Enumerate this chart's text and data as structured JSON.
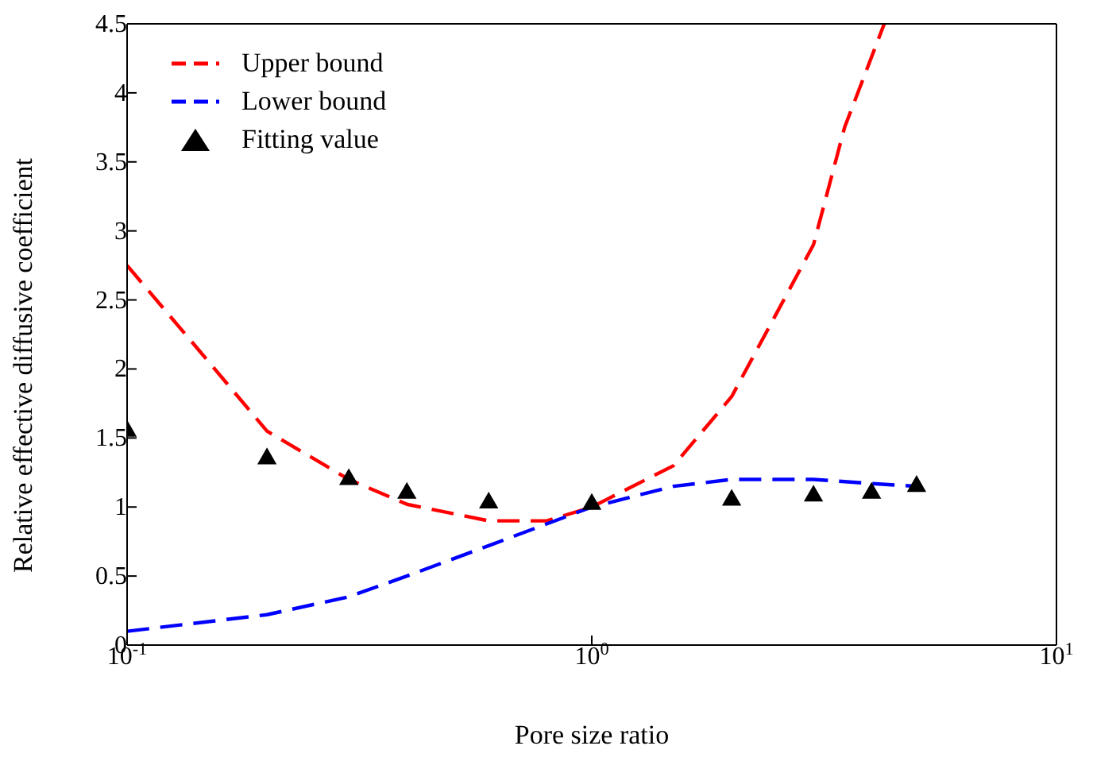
{
  "chart_data": {
    "type": "line",
    "xlabel": "Pore size ratio",
    "ylabel": "Relative effective diffusive coefficient",
    "log": "x",
    "grid": false,
    "legend": "top left",
    "xlim": [
      0.1,
      10
    ],
    "xticks": [
      {
        "value": 0.1,
        "label": "10$^{-1}$"
      },
      {
        "value": 1,
        "label": "10$^{0}$"
      },
      {
        "value": 10,
        "label": "10$^{1}$"
      }
    ],
    "ylim": [
      0,
      4.5
    ],
    "yticks": [
      0,
      0.5,
      1,
      1.5,
      2,
      2.5,
      3,
      3.5,
      4,
      4.5
    ],
    "series": [
      {
        "name": "Upper bound",
        "color": "#ff0000",
        "line_style": "dashed",
        "marker": "none",
        "x": [
          0.1,
          0.15,
          0.2,
          0.3,
          0.4,
          0.6,
          0.8,
          1,
          1.5,
          2,
          3,
          3.5,
          4.26
        ],
        "values": [
          2.75,
          2.05,
          1.55,
          1.2,
          1.02,
          0.9,
          0.9,
          1.0,
          1.3,
          1.8,
          2.9,
          3.75,
          4.5
        ]
      },
      {
        "name": "Lower bound",
        "color": "#0000ff",
        "line_style": "dashed",
        "marker": "none",
        "x": [
          0.1,
          0.2,
          0.3,
          0.4,
          0.6,
          1,
          1.5,
          2,
          3,
          4,
          5
        ],
        "values": [
          0.1,
          0.22,
          0.35,
          0.5,
          0.72,
          1.0,
          1.15,
          1.2,
          1.2,
          1.17,
          1.15
        ]
      },
      {
        "name": "Fitting value",
        "type": "scatter",
        "color": "#000000",
        "marker": "triangle",
        "x": [
          0.1,
          0.2,
          0.3,
          0.4,
          0.6,
          1,
          2,
          3,
          4,
          5
        ],
        "values": [
          1.55,
          1.35,
          1.2,
          1.1,
          1.03,
          1.02,
          1.05,
          1.08,
          1.1,
          1.15
        ]
      }
    ]
  }
}
